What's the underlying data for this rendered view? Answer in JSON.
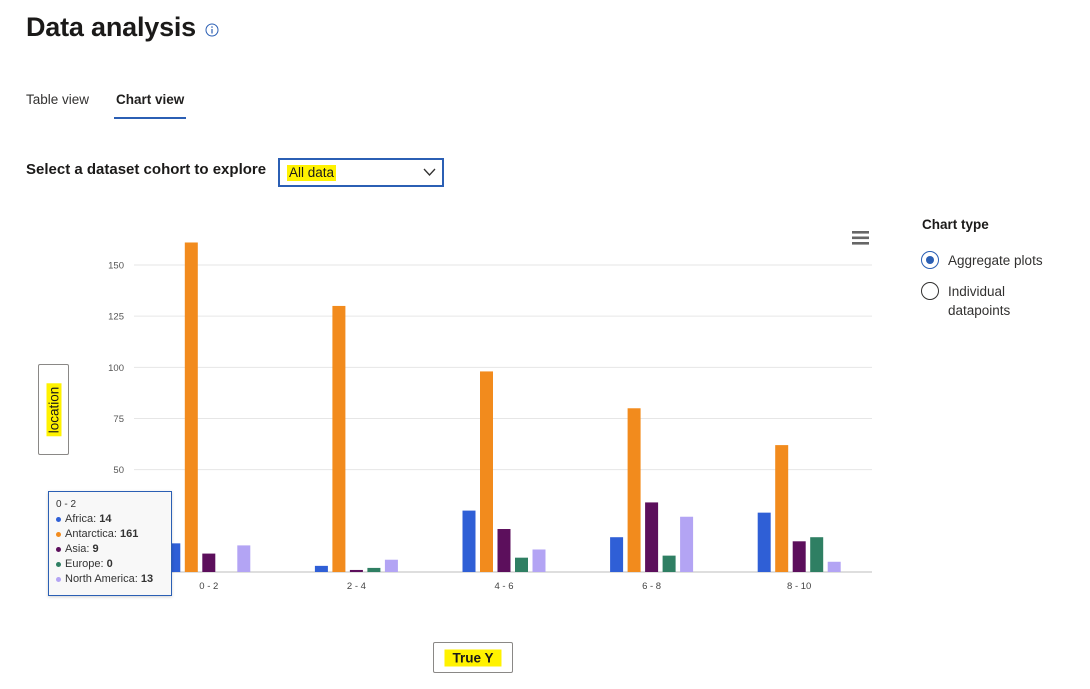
{
  "page": {
    "title": "Data analysis"
  },
  "tabs": [
    {
      "label": "Table view",
      "active": false
    },
    {
      "label": "Chart view",
      "active": true
    }
  ],
  "cohort": {
    "label": "Select a dataset cohort to explore",
    "selected": "All data"
  },
  "axes": {
    "y_button": "location",
    "x_button": "True Y"
  },
  "chart_type": {
    "title": "Chart type",
    "options": [
      {
        "label": "Aggregate plots",
        "selected": true
      },
      {
        "label": "Individual datapoints",
        "selected": false
      }
    ]
  },
  "tooltip": {
    "header": "0 - 2",
    "rows": [
      {
        "name": "Africa",
        "value": "14"
      },
      {
        "name": "Antarctica",
        "value": "161"
      },
      {
        "name": "Asia",
        "value": "9"
      },
      {
        "name": "Europe",
        "value": "0"
      },
      {
        "name": "North America",
        "value": "13"
      }
    ]
  },
  "colors": {
    "accent": "#2b5fb4",
    "highlight": "#fff200"
  },
  "chart_data": {
    "type": "bar",
    "categories": [
      "0 - 2",
      "2 - 4",
      "4 - 6",
      "6 - 8",
      "8 - 10"
    ],
    "series": [
      {
        "name": "Africa",
        "color": "#2f5fd6",
        "values": [
          14,
          3,
          30,
          17,
          29
        ]
      },
      {
        "name": "Antarctica",
        "color": "#f28b1d",
        "values": [
          161,
          130,
          98,
          80,
          62
        ]
      },
      {
        "name": "Asia",
        "color": "#5c0f5c",
        "values": [
          9,
          1,
          21,
          34,
          15
        ]
      },
      {
        "name": "Europe",
        "color": "#2f7f63",
        "values": [
          0,
          2,
          7,
          8,
          17
        ]
      },
      {
        "name": "North America",
        "color": "#b3a4f4",
        "values": [
          13,
          6,
          11,
          27,
          5
        ]
      }
    ],
    "y_ticks": [
      50,
      75,
      100,
      125,
      150
    ],
    "ylim": [
      0,
      165
    ],
    "grid": true,
    "xlabel": "True Y",
    "ylabel": "location"
  }
}
